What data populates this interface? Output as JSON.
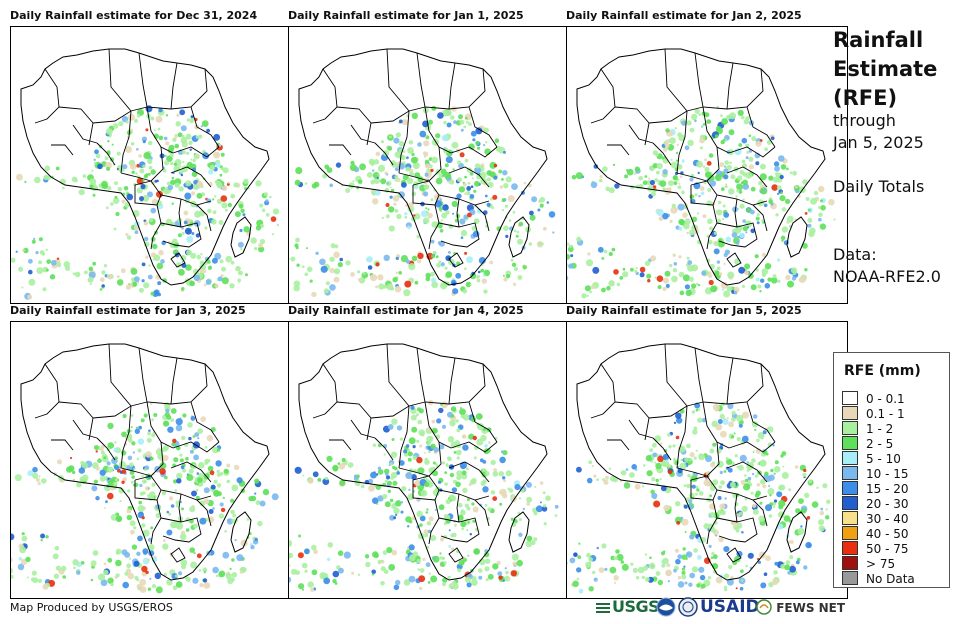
{
  "panels": [
    {
      "title": "Daily Rainfall estimate for Dec 31, 2024"
    },
    {
      "title": "Daily Rainfall estimate for Jan 1, 2025"
    },
    {
      "title": "Daily Rainfall estimate for Jan 2, 2025"
    },
    {
      "title": "Daily Rainfall estimate for Jan 3, 2025"
    },
    {
      "title": "Daily Rainfall estimate for Jan 4, 2025"
    },
    {
      "title": "Daily Rainfall estimate for Jan 5, 2025"
    }
  ],
  "side": {
    "title_line1": "Rainfall",
    "title_line2": "Estimate",
    "title_line3": "(RFE)",
    "through": "through",
    "end_date": "Jan 5, 2025",
    "totals": "Daily Totals",
    "data_label": "Data:",
    "data_source": "NOAA-RFE2.0"
  },
  "legend": {
    "title": "RFE (mm)",
    "items": [
      {
        "label": "0 - 0.1",
        "color": "#ffffff"
      },
      {
        "label": "0.1 - 1",
        "color": "#e8d8b8"
      },
      {
        "label": "1 - 2",
        "color": "#a8f0a0"
      },
      {
        "label": "2 - 5",
        "color": "#5ee05a"
      },
      {
        "label": "5 - 10",
        "color": "#a8eef8"
      },
      {
        "label": "10 - 15",
        "color": "#7ab8f0"
      },
      {
        "label": "15 - 20",
        "color": "#3c8ee8"
      },
      {
        "label": "20 - 30",
        "color": "#1f5fd0"
      },
      {
        "label": "30 - 40",
        "color": "#f8e08a"
      },
      {
        "label": "40 - 50",
        "color": "#f0a010"
      },
      {
        "label": "50 - 75",
        "color": "#e83010"
      },
      {
        "label": "> 75",
        "color": "#a01010"
      },
      {
        "label": "No Data",
        "color": "#999999"
      }
    ]
  },
  "footer": {
    "credit": "Map Produced by USGS/EROS",
    "logos": {
      "usgs": "USGS",
      "usaid": "USAID",
      "fewsnet": "FEWS NET"
    }
  }
}
